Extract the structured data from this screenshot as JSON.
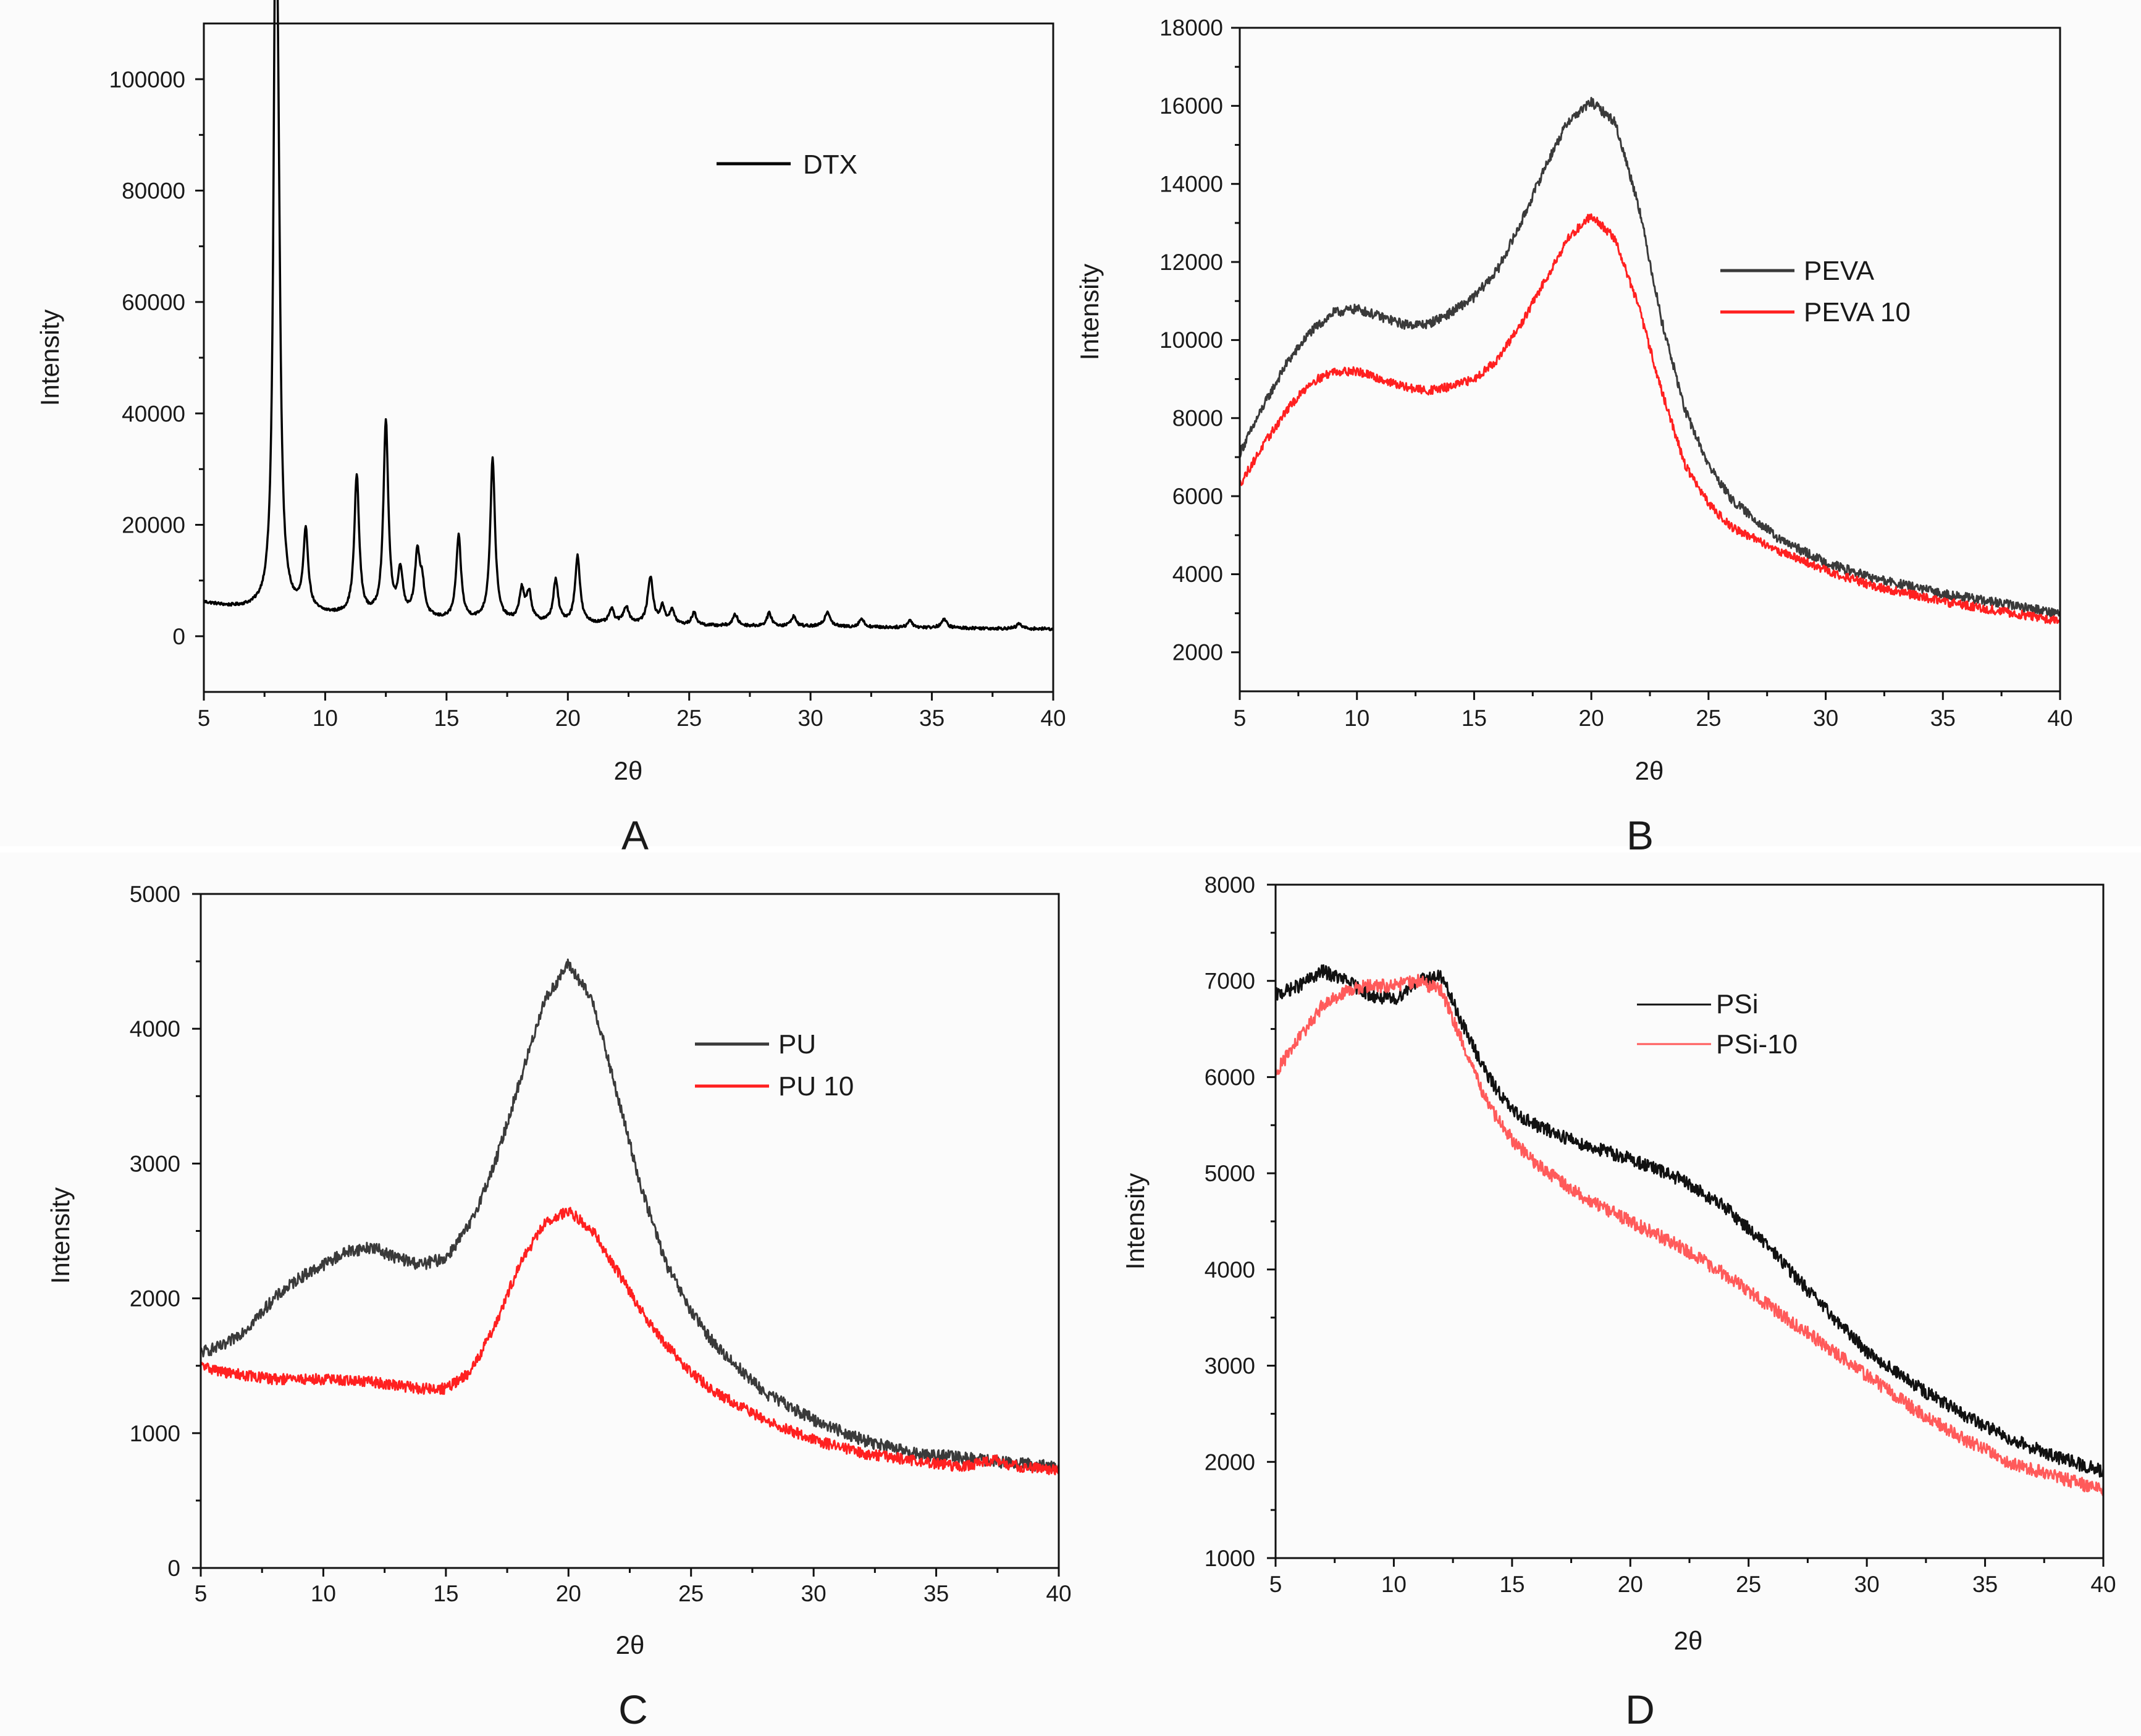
{
  "chart_data": [
    {
      "panel": "A",
      "type": "line",
      "xlabel": "2θ",
      "ylabel": "Intensity",
      "xlim": [
        5,
        40
      ],
      "ylim": [
        -10000,
        110000
      ],
      "xticks": [
        5,
        10,
        15,
        20,
        25,
        30,
        35,
        40
      ],
      "yticks": [
        0,
        20000,
        40000,
        60000,
        80000,
        100000
      ],
      "legend_position": "top-right",
      "series": [
        {
          "name": "DTX",
          "color": "#000000",
          "baseline": [
            [
              5,
              6000
            ],
            [
              6,
              5200
            ],
            [
              7,
              4800
            ],
            [
              8,
              4500
            ],
            [
              9,
              4200
            ],
            [
              10,
              3800
            ],
            [
              12,
              3300
            ],
            [
              15,
              2800
            ],
            [
              20,
              2300
            ],
            [
              25,
              1900
            ],
            [
              30,
              1700
            ],
            [
              35,
              1500
            ],
            [
              40,
              1300
            ]
          ],
          "peaks": [
            [
              7.95,
              94000,
              0.1
            ],
            [
              8.05,
              60000,
              0.12
            ],
            [
              9.2,
              14000,
              0.12
            ],
            [
              11.3,
              25000,
              0.12
            ],
            [
              12.5,
              35000,
              0.12
            ],
            [
              13.1,
              8000,
              0.12
            ],
            [
              13.8,
              11000,
              0.13
            ],
            [
              14.0,
              5000,
              0.12
            ],
            [
              15.5,
              15000,
              0.12
            ],
            [
              16.9,
              29000,
              0.12
            ],
            [
              18.1,
              5500,
              0.12
            ],
            [
              18.4,
              5000,
              0.12
            ],
            [
              19.5,
              7500,
              0.12
            ],
            [
              20.4,
              12000,
              0.12
            ],
            [
              21.8,
              2500,
              0.12
            ],
            [
              22.4,
              3000,
              0.14
            ],
            [
              23.4,
              8500,
              0.13
            ],
            [
              23.9,
              3000,
              0.12
            ],
            [
              24.3,
              2500,
              0.12
            ],
            [
              25.2,
              2200,
              0.12
            ],
            [
              26.9,
              2000,
              0.12
            ],
            [
              28.3,
              2300,
              0.12
            ],
            [
              29.3,
              1800,
              0.12
            ],
            [
              30.7,
              2700,
              0.14
            ],
            [
              32.1,
              1500,
              0.12
            ],
            [
              34.1,
              1300,
              0.12
            ],
            [
              35.5,
              1500,
              0.14
            ],
            [
              38.6,
              900,
              0.12
            ]
          ]
        }
      ]
    },
    {
      "panel": "B",
      "type": "line",
      "xlabel": "2θ",
      "ylabel": "Intensity",
      "xlim": [
        5,
        40
      ],
      "ylim": [
        1000,
        18000
      ],
      "xticks": [
        5,
        10,
        15,
        20,
        25,
        30,
        35,
        40
      ],
      "yticks": [
        2000,
        4000,
        6000,
        8000,
        10000,
        12000,
        14000,
        16000,
        18000
      ],
      "legend_position": "right",
      "series": [
        {
          "name": "PEVA",
          "color": "#3a3a3a",
          "noise": 120,
          "points": [
            [
              5,
              7100
            ],
            [
              6,
              8300
            ],
            [
              7,
              9400
            ],
            [
              8,
              10200
            ],
            [
              9,
              10700
            ],
            [
              10,
              10800
            ],
            [
              11,
              10600
            ],
            [
              12,
              10400
            ],
            [
              13,
              10400
            ],
            [
              14,
              10700
            ],
            [
              15,
              11100
            ],
            [
              16,
              11800
            ],
            [
              17,
              13000
            ],
            [
              18,
              14400
            ],
            [
              19,
              15600
            ],
            [
              20,
              16100
            ],
            [
              21,
              15600
            ],
            [
              22,
              13500
            ],
            [
              23,
              10500
            ],
            [
              24,
              8200
            ],
            [
              25,
              6800
            ],
            [
              26,
              5900
            ],
            [
              28,
              4900
            ],
            [
              30,
              4300
            ],
            [
              32,
              3900
            ],
            [
              35,
              3500
            ],
            [
              38,
              3200
            ],
            [
              40,
              3000
            ]
          ]
        },
        {
          "name": "PEVA 10",
          "color": "#ff2020",
          "noise": 110,
          "points": [
            [
              5,
              6300
            ],
            [
              6,
              7300
            ],
            [
              7,
              8200
            ],
            [
              8,
              8900
            ],
            [
              9,
              9200
            ],
            [
              10,
              9200
            ],
            [
              11,
              9000
            ],
            [
              12,
              8800
            ],
            [
              13,
              8700
            ],
            [
              14,
              8800
            ],
            [
              15,
              9000
            ],
            [
              16,
              9500
            ],
            [
              17,
              10400
            ],
            [
              18,
              11500
            ],
            [
              19,
              12600
            ],
            [
              20,
              13200
            ],
            [
              21,
              12600
            ],
            [
              22,
              10900
            ],
            [
              23,
              8700
            ],
            [
              24,
              6800
            ],
            [
              25,
              5800
            ],
            [
              26,
              5200
            ],
            [
              28,
              4600
            ],
            [
              30,
              4100
            ],
            [
              32,
              3700
            ],
            [
              35,
              3300
            ],
            [
              38,
              3000
            ],
            [
              40,
              2800
            ]
          ]
        }
      ]
    },
    {
      "panel": "C",
      "type": "line",
      "xlabel": "2θ",
      "ylabel": "Intensity",
      "xlim": [
        5,
        40
      ],
      "ylim": [
        0,
        5000
      ],
      "xticks": [
        5,
        10,
        15,
        20,
        25,
        30,
        35,
        40
      ],
      "yticks": [
        0,
        1000,
        2000,
        3000,
        4000,
        5000
      ],
      "legend_position": "right",
      "series": [
        {
          "name": "PU",
          "color": "#3a3a3a",
          "noise": 45,
          "points": [
            [
              5,
              1600
            ],
            [
              6,
              1650
            ],
            [
              7,
              1800
            ],
            [
              8,
              2000
            ],
            [
              9,
              2150
            ],
            [
              10,
              2250
            ],
            [
              11,
              2350
            ],
            [
              12,
              2380
            ],
            [
              13,
              2300
            ],
            [
              14,
              2250
            ],
            [
              15,
              2300
            ],
            [
              16,
              2550
            ],
            [
              17,
              3000
            ],
            [
              18,
              3600
            ],
            [
              19,
              4200
            ],
            [
              20,
              4480
            ],
            [
              21,
              4200
            ],
            [
              22,
              3500
            ],
            [
              23,
              2800
            ],
            [
              24,
              2250
            ],
            [
              25,
              1900
            ],
            [
              26,
              1650
            ],
            [
              28,
              1300
            ],
            [
              30,
              1100
            ],
            [
              32,
              950
            ],
            [
              34,
              850
            ],
            [
              36,
              820
            ],
            [
              37,
              800
            ],
            [
              38,
              780
            ],
            [
              40,
              750
            ]
          ]
        },
        {
          "name": "PU 10",
          "color": "#ff2020",
          "noise": 40,
          "points": [
            [
              5,
              1500
            ],
            [
              6,
              1450
            ],
            [
              8,
              1400
            ],
            [
              10,
              1400
            ],
            [
              12,
              1380
            ],
            [
              14,
              1330
            ],
            [
              15,
              1330
            ],
            [
              16,
              1450
            ],
            [
              17,
              1800
            ],
            [
              18,
              2250
            ],
            [
              19,
              2550
            ],
            [
              20,
              2650
            ],
            [
              21,
              2500
            ],
            [
              22,
              2200
            ],
            [
              23,
              1900
            ],
            [
              24,
              1650
            ],
            [
              25,
              1450
            ],
            [
              26,
              1300
            ],
            [
              28,
              1100
            ],
            [
              30,
              950
            ],
            [
              32,
              850
            ],
            [
              34,
              800
            ],
            [
              36,
              750
            ],
            [
              37.5,
              800
            ],
            [
              38,
              760
            ],
            [
              40,
              720
            ]
          ]
        }
      ]
    },
    {
      "panel": "D",
      "type": "line",
      "xlabel": "2θ",
      "ylabel": "Intensity",
      "xlim": [
        5,
        40
      ],
      "ylim": [
        1000,
        8000
      ],
      "xticks": [
        5,
        10,
        15,
        20,
        25,
        30,
        35,
        40
      ],
      "yticks": [
        1000,
        2000,
        3000,
        4000,
        5000,
        6000,
        7000,
        8000
      ],
      "legend_position": "top-right",
      "series": [
        {
          "name": "PSi",
          "color": "#111111",
          "noise": 70,
          "points": [
            [
              5,
              6850
            ],
            [
              6,
              6950
            ],
            [
              7,
              7100
            ],
            [
              8,
              7000
            ],
            [
              9,
              6850
            ],
            [
              10,
              6800
            ],
            [
              11,
              7000
            ],
            [
              12,
              7050
            ],
            [
              13,
              6500
            ],
            [
              14,
              6000
            ],
            [
              15,
              5650
            ],
            [
              16,
              5500
            ],
            [
              18,
              5300
            ],
            [
              20,
              5150
            ],
            [
              22,
              4950
            ],
            [
              24,
              4650
            ],
            [
              26,
              4200
            ],
            [
              28,
              3650
            ],
            [
              30,
              3150
            ],
            [
              32,
              2800
            ],
            [
              34,
              2500
            ],
            [
              36,
              2250
            ],
            [
              38,
              2050
            ],
            [
              40,
              1900
            ]
          ]
        },
        {
          "name": "PSi-10",
          "color": "#ff5a5a",
          "noise": 70,
          "points": [
            [
              5,
              6050
            ],
            [
              6,
              6400
            ],
            [
              7,
              6750
            ],
            [
              8,
              6900
            ],
            [
              9,
              6950
            ],
            [
              10,
              6950
            ],
            [
              11,
              7000
            ],
            [
              12,
              6900
            ],
            [
              13,
              6300
            ],
            [
              14,
              5700
            ],
            [
              15,
              5350
            ],
            [
              16,
              5100
            ],
            [
              18,
              4750
            ],
            [
              20,
              4500
            ],
            [
              22,
              4250
            ],
            [
              24,
              3950
            ],
            [
              26,
              3600
            ],
            [
              28,
              3250
            ],
            [
              30,
              2900
            ],
            [
              32,
              2550
            ],
            [
              34,
              2250
            ],
            [
              36,
              2000
            ],
            [
              38,
              1850
            ],
            [
              40,
              1700
            ]
          ]
        }
      ]
    }
  ],
  "panels": {
    "a": {
      "letter": "A",
      "xlabel": "2θ",
      "ylabel": "Intensity",
      "xticks": [
        "5",
        "10",
        "15",
        "20",
        "25",
        "30",
        "35",
        "40"
      ],
      "yticks": [
        "0",
        "20000",
        "40000",
        "60000",
        "80000",
        "100000"
      ],
      "legend": [
        "DTX"
      ]
    },
    "b": {
      "letter": "B",
      "xlabel": "2θ",
      "ylabel": "Intensity",
      "xticks": [
        "5",
        "10",
        "15",
        "20",
        "25",
        "30",
        "35",
        "40"
      ],
      "yticks": [
        "2000",
        "4000",
        "6000",
        "8000",
        "10000",
        "12000",
        "14000",
        "16000",
        "18000"
      ],
      "legend": [
        "PEVA",
        "PEVA 10"
      ]
    },
    "c": {
      "letter": "C",
      "xlabel": "2θ",
      "ylabel": "Intensity",
      "xticks": [
        "5",
        "10",
        "15",
        "20",
        "25",
        "30",
        "35",
        "40"
      ],
      "yticks": [
        "0",
        "1000",
        "2000",
        "3000",
        "4000",
        "5000"
      ],
      "legend": [
        "PU",
        "PU 10"
      ]
    },
    "d": {
      "letter": "D",
      "xlabel": "2θ",
      "ylabel": "Intensity",
      "xticks": [
        "5",
        "10",
        "15",
        "20",
        "25",
        "30",
        "35",
        "40"
      ],
      "yticks": [
        "1000",
        "2000",
        "3000",
        "4000",
        "5000",
        "6000",
        "7000",
        "8000"
      ],
      "legend": [
        "PSi",
        "PSi-10"
      ]
    }
  }
}
